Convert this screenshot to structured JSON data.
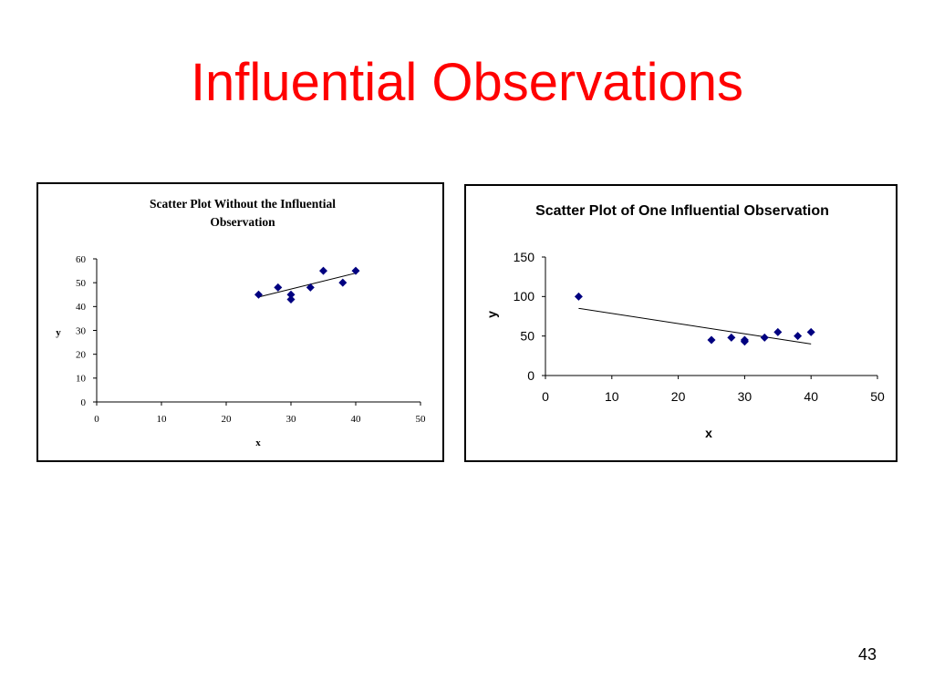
{
  "slide": {
    "title": "Influential Observations",
    "page_number": "43"
  },
  "colors": {
    "title": "#ff0000",
    "marker": "#000080",
    "axis": "#000000"
  },
  "chart_data": [
    {
      "type": "scatter",
      "title_lines": [
        "Scatter Plot Without the Influential",
        "Observation"
      ],
      "xlabel": "x",
      "ylabel": "y",
      "xlim": [
        0,
        50
      ],
      "ylim": [
        0,
        60
      ],
      "xticks": [
        0,
        10,
        20,
        30,
        40,
        50
      ],
      "yticks": [
        0,
        10,
        20,
        30,
        40,
        50,
        60
      ],
      "grid": false,
      "legend": "none",
      "points": [
        {
          "x": 25,
          "y": 45
        },
        {
          "x": 28,
          "y": 48
        },
        {
          "x": 30,
          "y": 45
        },
        {
          "x": 30,
          "y": 43
        },
        {
          "x": 33,
          "y": 48
        },
        {
          "x": 35,
          "y": 55
        },
        {
          "x": 38,
          "y": 50
        },
        {
          "x": 40,
          "y": 55
        }
      ],
      "trendline": {
        "x": [
          25,
          40
        ],
        "y": [
          44,
          54
        ]
      }
    },
    {
      "type": "scatter",
      "title_lines": [
        "Scatter Plot of One Influential Observation"
      ],
      "xlabel": "x",
      "ylabel": "y",
      "xlim": [
        0,
        50
      ],
      "ylim": [
        0,
        150
      ],
      "xticks": [
        0,
        10,
        20,
        30,
        40,
        50
      ],
      "yticks": [
        0,
        50,
        100,
        150
      ],
      "grid": false,
      "legend": "none",
      "points": [
        {
          "x": 5,
          "y": 100
        },
        {
          "x": 25,
          "y": 45
        },
        {
          "x": 28,
          "y": 48
        },
        {
          "x": 30,
          "y": 45
        },
        {
          "x": 30,
          "y": 43
        },
        {
          "x": 33,
          "y": 48
        },
        {
          "x": 35,
          "y": 55
        },
        {
          "x": 38,
          "y": 50
        },
        {
          "x": 40,
          "y": 55
        }
      ],
      "trendline": {
        "x": [
          5,
          40
        ],
        "y": [
          85,
          40
        ]
      }
    }
  ]
}
